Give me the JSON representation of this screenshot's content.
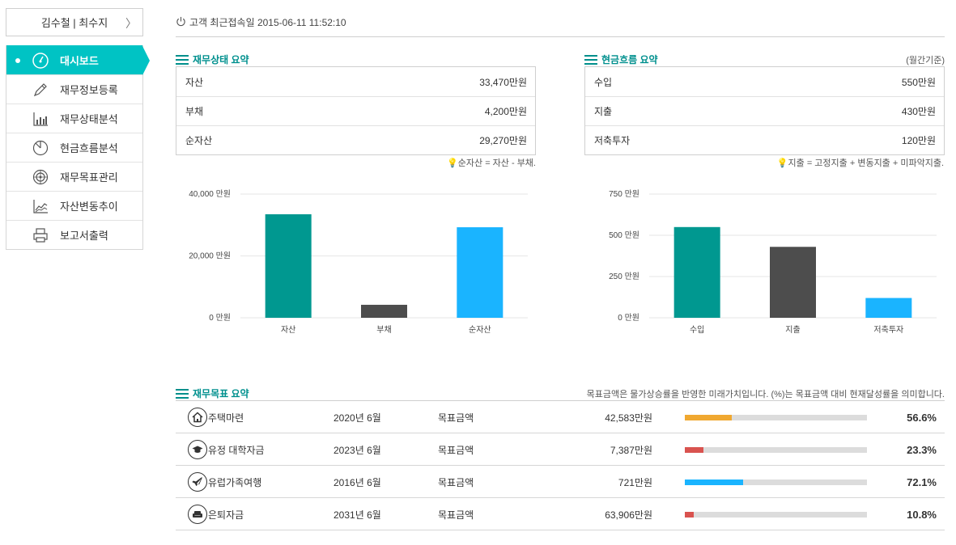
{
  "sidebar": {
    "user_names": "김수철 | 최수지",
    "chevron": "〉",
    "items": [
      {
        "label": "대시보드",
        "icon": "speedometer-icon",
        "active": true
      },
      {
        "label": "재무정보등록",
        "icon": "pencil-icon"
      },
      {
        "label": "재무상태분석",
        "icon": "bar-chart-icon"
      },
      {
        "label": "현금흐름분석",
        "icon": "pie-chart-icon"
      },
      {
        "label": "재무목표관리",
        "icon": "target-icon"
      },
      {
        "label": "자산변동추이",
        "icon": "line-chart-icon"
      },
      {
        "label": "보고서출력",
        "icon": "printer-icon"
      }
    ]
  },
  "header": {
    "last_login": "고객 최근접속일 2015-06-11 11:52:10"
  },
  "financial_status": {
    "title": "재무상태 요약",
    "rows": [
      {
        "label": "자산",
        "value": "33,470만원"
      },
      {
        "label": "부채",
        "value": "4,200만원"
      },
      {
        "label": "순자산",
        "value": "29,270만원"
      }
    ],
    "hint": "순자산 = 자산 - 부채."
  },
  "cash_flow": {
    "title": "현금흐름 요약",
    "unit_note": "(월간기준)",
    "rows": [
      {
        "label": "수입",
        "value": "550만원"
      },
      {
        "label": "지출",
        "value": "430만원"
      },
      {
        "label": "저축투자",
        "value": "120만원"
      }
    ],
    "hint": "지출 = 고정지출 + 변동지출 + 미파악지출."
  },
  "chart_data": [
    {
      "type": "bar",
      "categories": [
        "자산",
        "부채",
        "순자산"
      ],
      "values": [
        33470,
        4200,
        29270
      ],
      "bar_colors": [
        "#009890",
        "#4d4d4d",
        "#1ab4ff"
      ],
      "yticks": [
        0,
        20000,
        40000
      ],
      "ytick_labels": [
        "0 만원",
        "20,000 만원",
        "40,000 만원"
      ],
      "ylim": [
        0,
        40000
      ],
      "grid": true
    },
    {
      "type": "bar",
      "categories": [
        "수입",
        "지출",
        "저축투자"
      ],
      "values": [
        550,
        430,
        120
      ],
      "bar_colors": [
        "#009890",
        "#4d4d4d",
        "#1ab4ff"
      ],
      "yticks": [
        0,
        250,
        500,
        750
      ],
      "ytick_labels": [
        "0 만원",
        "250 만원",
        "500 만원",
        "750 만원"
      ],
      "ylim": [
        0,
        750
      ],
      "grid": true
    }
  ],
  "goals": {
    "title": "재무목표 요약",
    "note": "목표금액은 물가상승률을 반영한 미래가치입니다. (%)는 목표금액 대비 현재달성률을 의미합니다.",
    "items": [
      {
        "name": "주택마련",
        "icon": "house-icon",
        "date": "2020년 6월",
        "label": "목표금액",
        "amount": "42,583만원",
        "progress": 0.256,
        "bar_color": "#f0a830",
        "percent": "56.6%"
      },
      {
        "name": "유정 대학자금",
        "icon": "graduation-cap-icon",
        "date": "2023년 6월",
        "label": "목표금액",
        "amount": "7,387만원",
        "progress": 0.1,
        "bar_color": "#d9534f",
        "percent": "23.3%"
      },
      {
        "name": "유럽가족여행",
        "icon": "airplane-icon",
        "date": "2016년 6월",
        "label": "목표금액",
        "amount": "721만원",
        "progress": 0.32,
        "bar_color": "#1ab4ff",
        "percent": "72.1%"
      },
      {
        "name": "은퇴자금",
        "icon": "armchair-icon",
        "date": "2031년 6월",
        "label": "목표금액",
        "amount": "63,906만원",
        "progress": 0.05,
        "bar_color": "#d9534f",
        "percent": "10.8%"
      }
    ]
  }
}
